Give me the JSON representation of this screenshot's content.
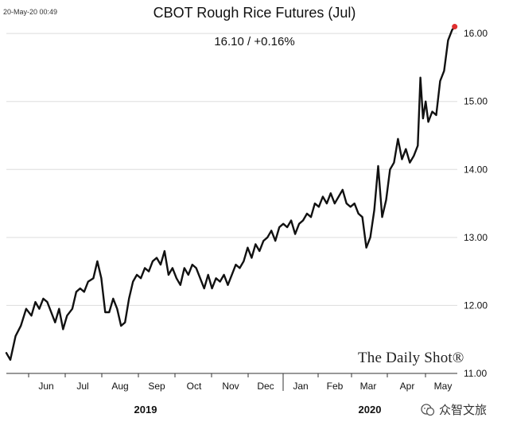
{
  "chart_data": {
    "type": "line",
    "title": "CBOT Rough Rice Futures (Jul)",
    "subtitle": "16.10  /  +0.16%",
    "timestamp": "20-May-20 00:49",
    "ylim": [
      11.0,
      16.2
    ],
    "yticks": [
      "11.00",
      "12.00",
      "13.00",
      "14.00",
      "15.00",
      "16.00"
    ],
    "x_months": [
      "Jun",
      "Jul",
      "Aug",
      "Sep",
      "Oct",
      "Nov",
      "Dec",
      "Jan",
      "Feb",
      "Mar",
      "Apr",
      "May"
    ],
    "x_years": [
      "2019",
      "2020"
    ],
    "grid": "horizontal",
    "line_color": "#111111",
    "last_point_color": "#e03030",
    "series": [
      {
        "values": [
          [
            0.0,
            11.3
          ],
          [
            0.3,
            11.2
          ],
          [
            0.7,
            11.55
          ],
          [
            1.1,
            11.7
          ],
          [
            1.5,
            11.95
          ],
          [
            1.9,
            11.85
          ],
          [
            2.2,
            12.05
          ],
          [
            2.5,
            11.95
          ],
          [
            2.8,
            12.1
          ],
          [
            3.1,
            12.05
          ],
          [
            3.4,
            11.9
          ],
          [
            3.7,
            11.75
          ],
          [
            4.0,
            11.95
          ],
          [
            4.3,
            11.65
          ],
          [
            4.6,
            11.85
          ],
          [
            5.0,
            11.95
          ],
          [
            5.3,
            12.2
          ],
          [
            5.6,
            12.25
          ],
          [
            5.9,
            12.2
          ],
          [
            6.2,
            12.35
          ],
          [
            6.6,
            12.4
          ],
          [
            6.9,
            12.65
          ],
          [
            7.2,
            12.4
          ],
          [
            7.5,
            11.9
          ],
          [
            7.8,
            11.9
          ],
          [
            8.1,
            12.1
          ],
          [
            8.4,
            11.95
          ],
          [
            8.7,
            11.7
          ],
          [
            9.0,
            11.75
          ],
          [
            9.3,
            12.1
          ],
          [
            9.6,
            12.35
          ],
          [
            9.9,
            12.45
          ],
          [
            10.2,
            12.4
          ],
          [
            10.5,
            12.55
          ],
          [
            10.8,
            12.5
          ],
          [
            11.1,
            12.65
          ],
          [
            11.4,
            12.7
          ],
          [
            11.7,
            12.6
          ],
          [
            12.0,
            12.8
          ],
          [
            12.3,
            12.45
          ],
          [
            12.6,
            12.55
          ],
          [
            12.9,
            12.4
          ],
          [
            13.2,
            12.3
          ],
          [
            13.5,
            12.55
          ],
          [
            13.8,
            12.45
          ],
          [
            14.1,
            12.6
          ],
          [
            14.4,
            12.55
          ],
          [
            14.7,
            12.4
          ],
          [
            15.0,
            12.25
          ],
          [
            15.3,
            12.45
          ],
          [
            15.6,
            12.25
          ],
          [
            15.9,
            12.4
          ],
          [
            16.2,
            12.35
          ],
          [
            16.5,
            12.45
          ],
          [
            16.8,
            12.3
          ],
          [
            17.1,
            12.45
          ],
          [
            17.4,
            12.6
          ],
          [
            17.7,
            12.55
          ],
          [
            18.0,
            12.65
          ],
          [
            18.3,
            12.85
          ],
          [
            18.6,
            12.7
          ],
          [
            18.9,
            12.9
          ],
          [
            19.2,
            12.8
          ],
          [
            19.5,
            12.95
          ],
          [
            19.8,
            13.0
          ],
          [
            20.1,
            13.1
          ],
          [
            20.4,
            12.95
          ],
          [
            20.7,
            13.15
          ],
          [
            21.0,
            13.2
          ],
          [
            21.3,
            13.15
          ],
          [
            21.6,
            13.25
          ],
          [
            21.9,
            13.05
          ],
          [
            22.2,
            13.2
          ],
          [
            22.5,
            13.25
          ],
          [
            22.8,
            13.35
          ],
          [
            23.1,
            13.3
          ],
          [
            23.4,
            13.5
          ],
          [
            23.7,
            13.45
          ],
          [
            24.0,
            13.6
          ],
          [
            24.3,
            13.5
          ],
          [
            24.6,
            13.65
          ],
          [
            24.9,
            13.5
          ],
          [
            25.2,
            13.6
          ],
          [
            25.5,
            13.7
          ],
          [
            25.8,
            13.5
          ],
          [
            26.1,
            13.45
          ],
          [
            26.4,
            13.5
          ],
          [
            26.7,
            13.35
          ],
          [
            27.0,
            13.3
          ],
          [
            27.3,
            12.85
          ],
          [
            27.6,
            13.0
          ],
          [
            27.9,
            13.4
          ],
          [
            28.2,
            14.05
          ],
          [
            28.5,
            13.3
          ],
          [
            28.8,
            13.55
          ],
          [
            29.1,
            14.0
          ],
          [
            29.4,
            14.1
          ],
          [
            29.7,
            14.45
          ],
          [
            30.0,
            14.15
          ],
          [
            30.3,
            14.3
          ],
          [
            30.6,
            14.1
          ],
          [
            30.9,
            14.2
          ],
          [
            31.2,
            14.35
          ],
          [
            31.4,
            15.35
          ],
          [
            31.6,
            14.75
          ],
          [
            31.8,
            15.0
          ],
          [
            32.0,
            14.7
          ],
          [
            32.3,
            14.85
          ],
          [
            32.6,
            14.8
          ],
          [
            32.9,
            15.3
          ],
          [
            33.2,
            15.45
          ],
          [
            33.5,
            15.9
          ],
          [
            33.8,
            16.05
          ],
          [
            34.0,
            16.1
          ]
        ]
      }
    ]
  },
  "brand_text": "The Daily Shot®",
  "watermark_text": "众智文旅"
}
